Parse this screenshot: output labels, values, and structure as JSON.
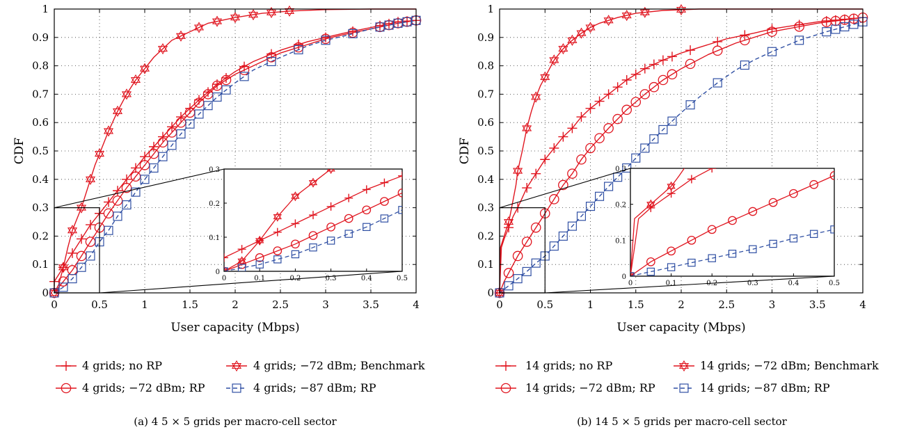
{
  "colors": {
    "red": "#e0151f",
    "blue": "#2f4fa3",
    "grid": "#222222"
  },
  "legend_labels": {
    "left": [
      "4 grids; no RP",
      "4 grids; −72 dBm; Benchmark",
      "4 grids; −72 dBm; RP",
      "4 grids; −87 dBm; RP"
    ],
    "right": [
      "14 grids; no RP",
      "14 grids; −72 dBm; Benchmark",
      "14 grids; −72 dBm; RP",
      "14 grids; −87 dBm; RP"
    ]
  },
  "captions": {
    "left": "(a)  4 5 × 5 grids per macro-cell sector",
    "right": "(b)  14 5 × 5 grids per macro-cell sector"
  },
  "chart_data": [
    {
      "type": "line",
      "xlabel": "User capacity (Mbps)",
      "ylabel": "CDF",
      "xlim": [
        0,
        4
      ],
      "ylim": [
        0,
        1
      ],
      "xticks": [
        "0",
        "0.5",
        "1",
        "1.5",
        "2",
        "2.5",
        "3",
        "3.5",
        "4"
      ],
      "yticks": [
        "0",
        "0.1",
        "0.2",
        "0.3",
        "0.4",
        "0.5",
        "0.6",
        "0.7",
        "0.8",
        "0.9",
        "1"
      ],
      "grid": true,
      "legend_position": "bottom",
      "series": [
        {
          "name": "4 grids; no RP",
          "color": "#e0151f",
          "dash": "solid",
          "marker": "plus",
          "x": [
            0,
            0.1,
            0.2,
            0.3,
            0.4,
            0.5,
            0.6,
            0.7,
            0.8,
            0.9,
            1.0,
            1.2,
            1.4,
            1.6,
            1.8,
            2.0,
            2.2,
            2.5,
            2.8,
            3.0,
            3.2,
            3.5,
            3.8,
            4.0
          ],
          "y": [
            0.04,
            0.09,
            0.14,
            0.19,
            0.24,
            0.28,
            0.32,
            0.36,
            0.4,
            0.44,
            0.48,
            0.55,
            0.62,
            0.68,
            0.735,
            0.78,
            0.815,
            0.855,
            0.885,
            0.9,
            0.915,
            0.935,
            0.955,
            0.96
          ]
        },
        {
          "name": "4 grids; −72 dBm; Benchmark",
          "color": "#e0151f",
          "dash": "solid",
          "marker": "star",
          "x": [
            0,
            0.05,
            0.1,
            0.15,
            0.2,
            0.25,
            0.3,
            0.35,
            0.4,
            0.45,
            0.5,
            0.55,
            0.6,
            0.7,
            0.8,
            0.9,
            1.0,
            1.1,
            1.2,
            1.3,
            1.5,
            1.7,
            2.0,
            2.3,
            2.6,
            3.0,
            3.5,
            4.0
          ],
          "y": [
            0,
            0.03,
            0.09,
            0.16,
            0.22,
            0.26,
            0.3,
            0.35,
            0.4,
            0.45,
            0.49,
            0.53,
            0.57,
            0.64,
            0.7,
            0.75,
            0.79,
            0.83,
            0.86,
            0.89,
            0.92,
            0.95,
            0.97,
            0.985,
            0.993,
            0.998,
            1.0,
            1.0
          ]
        },
        {
          "name": "4 grids; −72 dBm; RP",
          "color": "#e0151f",
          "dash": "solid",
          "marker": "circle",
          "x": [
            0,
            0.1,
            0.2,
            0.3,
            0.4,
            0.5,
            0.6,
            0.7,
            0.8,
            0.9,
            1.0,
            1.2,
            1.4,
            1.6,
            1.8,
            2.0,
            2.2,
            2.5,
            2.8,
            3.0,
            3.2,
            3.5,
            3.8,
            4.0
          ],
          "y": [
            0,
            0.04,
            0.08,
            0.13,
            0.18,
            0.23,
            0.28,
            0.325,
            0.37,
            0.41,
            0.45,
            0.53,
            0.6,
            0.67,
            0.73,
            0.77,
            0.8,
            0.845,
            0.875,
            0.895,
            0.91,
            0.93,
            0.95,
            0.96
          ]
        },
        {
          "name": "4 grids; −87 dBm; RP",
          "color": "#2f4fa3",
          "dash": "dashed",
          "marker": "square",
          "x": [
            0,
            0.1,
            0.2,
            0.3,
            0.4,
            0.5,
            0.6,
            0.7,
            0.8,
            0.9,
            1.0,
            1.2,
            1.4,
            1.6,
            1.8,
            2.0,
            2.2,
            2.5,
            2.8,
            3.0,
            3.2,
            3.5,
            3.8,
            4.0
          ],
          "y": [
            0,
            0.02,
            0.05,
            0.09,
            0.13,
            0.18,
            0.22,
            0.27,
            0.31,
            0.355,
            0.4,
            0.48,
            0.56,
            0.63,
            0.69,
            0.74,
            0.785,
            0.83,
            0.87,
            0.89,
            0.905,
            0.93,
            0.95,
            0.96
          ]
        }
      ],
      "inset": {
        "xlim": [
          0,
          0.5
        ],
        "ylim": [
          0,
          0.3
        ],
        "xticks": [
          "0",
          "0.1",
          "0.2",
          "0.3",
          "0.4",
          "0.5"
        ],
        "yticks": [
          "0",
          "0.1",
          "0.2",
          "0.3"
        ]
      }
    },
    {
      "type": "line",
      "xlabel": "User capacity (Mbps)",
      "ylabel": "CDF",
      "xlim": [
        0,
        4
      ],
      "ylim": [
        0,
        1
      ],
      "xticks": [
        "0",
        "0.5",
        "1",
        "1.5",
        "2",
        "2.5",
        "3",
        "3.5",
        "4"
      ],
      "yticks": [
        "0",
        "0.1",
        "0.2",
        "0.3",
        "0.4",
        "0.5",
        "0.6",
        "0.7",
        "0.8",
        "0.9",
        "1"
      ],
      "grid": true,
      "legend_position": "bottom",
      "series": [
        {
          "name": "14 grids; no RP",
          "color": "#e0151f",
          "dash": "solid",
          "marker": "plus",
          "x": [
            0,
            0.02,
            0.05,
            0.1,
            0.15,
            0.2,
            0.3,
            0.4,
            0.5,
            0.6,
            0.7,
            0.8,
            0.9,
            1.0,
            1.2,
            1.4,
            1.6,
            1.8,
            2.0,
            2.2,
            2.5,
            2.8,
            3.0,
            3.5,
            4.0
          ],
          "y": [
            0,
            0.16,
            0.19,
            0.23,
            0.27,
            0.3,
            0.37,
            0.42,
            0.47,
            0.51,
            0.55,
            0.58,
            0.62,
            0.65,
            0.7,
            0.75,
            0.79,
            0.82,
            0.845,
            0.865,
            0.895,
            0.915,
            0.93,
            0.955,
            0.97
          ]
        },
        {
          "name": "14 grids; −72 dBm; Benchmark",
          "color": "#e0151f",
          "dash": "solid",
          "marker": "star",
          "x": [
            0,
            0.01,
            0.03,
            0.05,
            0.08,
            0.1,
            0.12,
            0.15,
            0.18,
            0.2,
            0.25,
            0.3,
            0.35,
            0.4,
            0.45,
            0.5,
            0.6,
            0.7,
            0.8,
            0.9,
            1.0,
            1.1,
            1.3,
            1.5,
            1.8,
            2.2,
            2.8,
            3.4,
            4.0
          ],
          "y": [
            0,
            0.16,
            0.18,
            0.2,
            0.23,
            0.25,
            0.28,
            0.33,
            0.38,
            0.43,
            0.5,
            0.58,
            0.64,
            0.69,
            0.73,
            0.76,
            0.82,
            0.86,
            0.89,
            0.915,
            0.935,
            0.95,
            0.97,
            0.985,
            0.995,
            1.0,
            1.0,
            1.0,
            1.0
          ]
        },
        {
          "name": "14 grids; −72 dBm; RP",
          "color": "#e0151f",
          "dash": "solid",
          "marker": "circle",
          "x": [
            0,
            0.05,
            0.1,
            0.2,
            0.3,
            0.4,
            0.5,
            0.6,
            0.7,
            0.8,
            0.9,
            1.0,
            1.2,
            1.4,
            1.6,
            1.8,
            2.0,
            2.3,
            2.6,
            3.0,
            3.5,
            4.0
          ],
          "y": [
            0,
            0.04,
            0.07,
            0.13,
            0.18,
            0.23,
            0.28,
            0.33,
            0.38,
            0.42,
            0.47,
            0.51,
            0.58,
            0.645,
            0.7,
            0.75,
            0.79,
            0.84,
            0.88,
            0.92,
            0.95,
            0.97
          ]
        },
        {
          "name": "14 grids; −87 dBm; RP",
          "color": "#2f4fa3",
          "dash": "dashed",
          "marker": "square",
          "x": [
            0,
            0.1,
            0.2,
            0.3,
            0.4,
            0.5,
            0.6,
            0.7,
            0.8,
            0.9,
            1.0,
            1.2,
            1.4,
            1.6,
            1.8,
            2.0,
            2.2,
            2.4,
            2.6,
            2.8,
            3.0,
            3.3,
            3.6,
            4.0
          ],
          "y": [
            0,
            0.025,
            0.05,
            0.075,
            0.105,
            0.13,
            0.165,
            0.2,
            0.235,
            0.27,
            0.305,
            0.375,
            0.44,
            0.51,
            0.575,
            0.635,
            0.69,
            0.74,
            0.785,
            0.82,
            0.85,
            0.89,
            0.92,
            0.955
          ]
        }
      ],
      "inset": {
        "xlim": [
          0,
          0.5
        ],
        "ylim": [
          0,
          0.3
        ],
        "xticks": [
          "0",
          "0.1",
          "0.2",
          "0.3",
          "0.4",
          "0.5"
        ],
        "yticks": [
          "0",
          "0.1",
          "0.2",
          "0.3"
        ]
      }
    }
  ]
}
